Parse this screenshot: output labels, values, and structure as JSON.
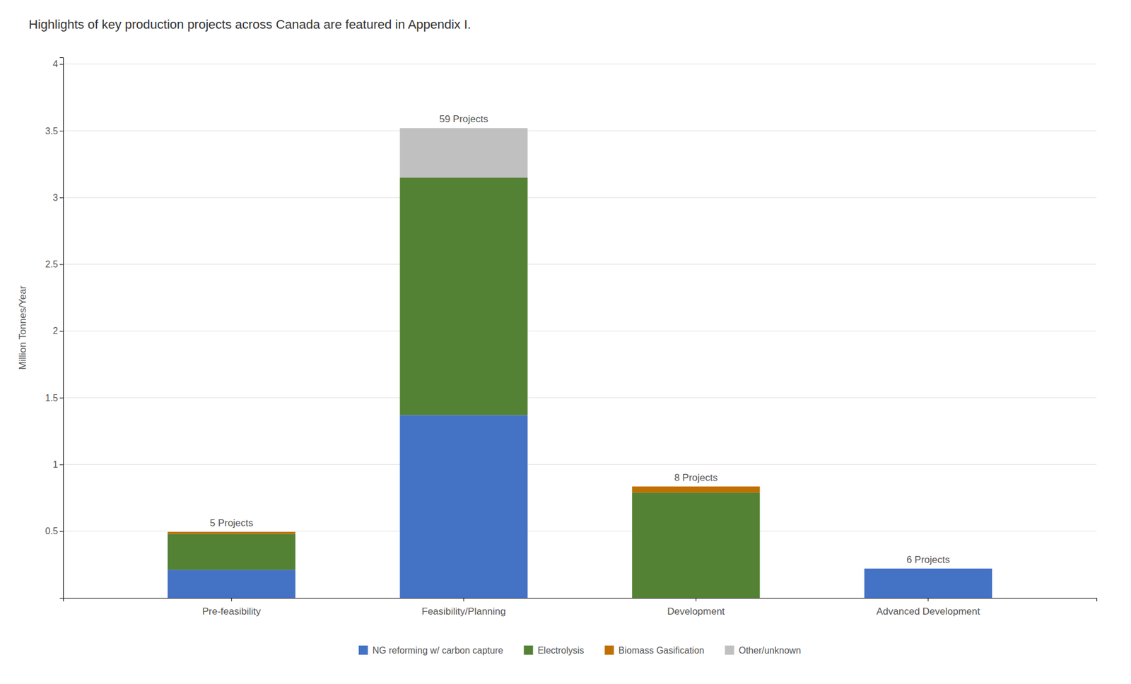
{
  "chart_data": {
    "type": "bar",
    "stacked": true,
    "title": "Highlights of key production projects across Canada are featured in Appendix I.",
    "ylabel": "Million Tonnes/Year",
    "categories": [
      "Pre-feasibility",
      "Feasibility/Planning",
      "Development",
      "Advanced Development"
    ],
    "series": [
      {
        "name": "NG reforming w/ carbon capture",
        "color": "#4472C4",
        "values": [
          0.21,
          1.37,
          0.0,
          0.22
        ]
      },
      {
        "name": "Electrolysis",
        "color": "#548235",
        "values": [
          0.27,
          1.78,
          0.79,
          0.0
        ]
      },
      {
        "name": "Biomass Gasification",
        "color": "#C07000",
        "values": [
          0.015,
          0.0,
          0.045,
          0.0
        ]
      },
      {
        "name": "Other/unknown",
        "color": "#C0C0C0",
        "values": [
          0.0,
          0.37,
          0.0,
          0.0
        ]
      }
    ],
    "annotations": [
      "5 Projects",
      "59 Projects",
      "8 Projects",
      "6 Projects"
    ],
    "ylim": [
      0,
      4.05
    ],
    "yticks": [
      0.5,
      1,
      1.5,
      2,
      2.5,
      3,
      3.5,
      4
    ],
    "grid": true,
    "legend": "bottom"
  }
}
